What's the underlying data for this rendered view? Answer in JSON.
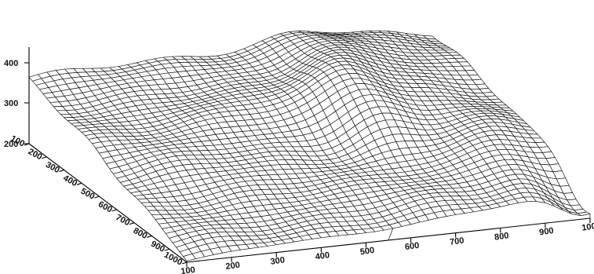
{
  "chart_data": {
    "type": "surface",
    "title": "",
    "xlabel": "",
    "ylabel": "",
    "zlabel": "",
    "x_ticks": [
      "100",
      "200",
      "300",
      "400",
      "500",
      "600",
      "700",
      "800",
      "900",
      "1000"
    ],
    "y_ticks": [
      "100",
      "200",
      "300",
      "400",
      "500",
      "600",
      "700",
      "800",
      "900",
      "1000"
    ],
    "z_ticks": [
      "200",
      "300",
      "400"
    ],
    "xlim": [
      100,
      1000
    ],
    "ylim": [
      100,
      1000
    ],
    "zlim": [
      200,
      440
    ],
    "grid_size": [
      46,
      46
    ],
    "line_color": "#1a1a1a",
    "background": "#ffffff"
  }
}
